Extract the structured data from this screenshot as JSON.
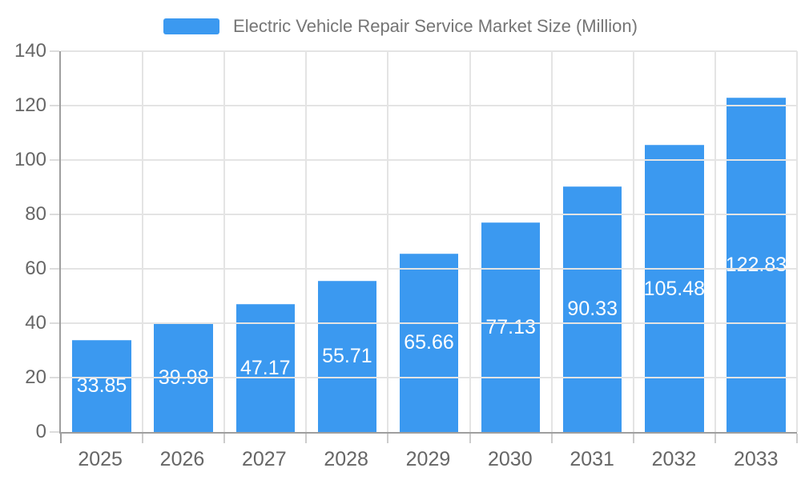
{
  "chart_data": {
    "type": "bar",
    "title": "Electric Vehicle Repair Service Market Size (Million)",
    "categories": [
      "2025",
      "2026",
      "2027",
      "2028",
      "2029",
      "2030",
      "2031",
      "2032",
      "2033"
    ],
    "values": [
      33.85,
      39.98,
      47.17,
      55.71,
      65.66,
      77.13,
      90.33,
      105.48,
      122.83
    ],
    "value_labels": [
      "33.85",
      "39.98",
      "47.17",
      "55.71",
      "65.66",
      "77.13",
      "90.33",
      "105.48",
      "122.83"
    ],
    "xlabel": "",
    "ylabel": "",
    "ylim": [
      0,
      140
    ],
    "yticks": [
      0,
      20,
      40,
      60,
      80,
      100,
      120,
      140
    ],
    "grid": true,
    "legend_position": "top-center",
    "colors": {
      "bar": "#3B99F0",
      "bar_value_text": "#FFFFFF",
      "legend_text": "#757575",
      "axis_tick_text": "#666666"
    }
  }
}
